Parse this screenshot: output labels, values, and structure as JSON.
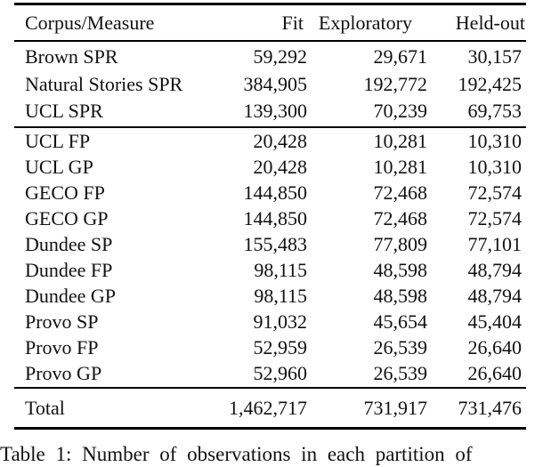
{
  "page": {
    "background_color": "#ffffff",
    "text_color": "#111111",
    "rule_color": "#000000"
  },
  "table": {
    "columns": [
      "Corpus/Measure",
      "Fit",
      "Exploratory",
      "Held-out"
    ],
    "sections": [
      {
        "rows": [
          {
            "label": "Brown SPR",
            "values": [
              "59,292",
              "29,671",
              "30,157"
            ]
          },
          {
            "label": "Natural Stories SPR",
            "values": [
              "384,905",
              "192,772",
              "192,425"
            ]
          },
          {
            "label": "UCL SPR",
            "values": [
              "139,300",
              "70,239",
              "69,753"
            ]
          }
        ]
      },
      {
        "rows": [
          {
            "label": "UCL FP",
            "values": [
              "20,428",
              "10,281",
              "10,310"
            ]
          },
          {
            "label": "UCL GP",
            "values": [
              "20,428",
              "10,281",
              "10,310"
            ]
          },
          {
            "label": "GECO FP",
            "values": [
              "144,850",
              "72,468",
              "72,574"
            ]
          },
          {
            "label": "GECO GP",
            "values": [
              "144,850",
              "72,468",
              "72,574"
            ]
          },
          {
            "label": "Dundee SP",
            "values": [
              "155,483",
              "77,809",
              "77,101"
            ]
          },
          {
            "label": "Dundee FP",
            "values": [
              "98,115",
              "48,598",
              "48,794"
            ]
          },
          {
            "label": "Dundee GP",
            "values": [
              "98,115",
              "48,598",
              "48,794"
            ]
          },
          {
            "label": "Provo SP",
            "values": [
              "91,032",
              "45,654",
              "45,404"
            ]
          },
          {
            "label": "Provo FP",
            "values": [
              "52,959",
              "26,539",
              "26,640"
            ]
          },
          {
            "label": "Provo GP",
            "values": [
              "52,960",
              "26,539",
              "26,640"
            ]
          }
        ]
      }
    ],
    "total": {
      "label": "Total",
      "values": [
        "1,462,717",
        "731,917",
        "731,476"
      ]
    }
  },
  "caption": {
    "visible_fragment": "Table 1: Number of observations in each partition of"
  },
  "chart_data": {
    "type": "table",
    "title": "Number of observations in each partition",
    "columns": [
      "Corpus/Measure",
      "Fit",
      "Exploratory",
      "Held-out"
    ],
    "rows": [
      [
        "Brown SPR",
        59292,
        29671,
        30157
      ],
      [
        "Natural Stories SPR",
        384905,
        192772,
        192425
      ],
      [
        "UCL SPR",
        139300,
        70239,
        69753
      ],
      [
        "UCL FP",
        20428,
        10281,
        10310
      ],
      [
        "UCL GP",
        20428,
        10281,
        10310
      ],
      [
        "GECO FP",
        144850,
        72468,
        72574
      ],
      [
        "GECO GP",
        144850,
        72468,
        72574
      ],
      [
        "Dundee SP",
        155483,
        77809,
        77101
      ],
      [
        "Dundee FP",
        98115,
        48598,
        48794
      ],
      [
        "Dundee GP",
        98115,
        48598,
        48794
      ],
      [
        "Provo SP",
        91032,
        45654,
        45404
      ],
      [
        "Provo FP",
        52959,
        26539,
        26640
      ],
      [
        "Provo GP",
        52960,
        26539,
        26640
      ],
      [
        "Total",
        1462717,
        731917,
        731476
      ]
    ]
  }
}
